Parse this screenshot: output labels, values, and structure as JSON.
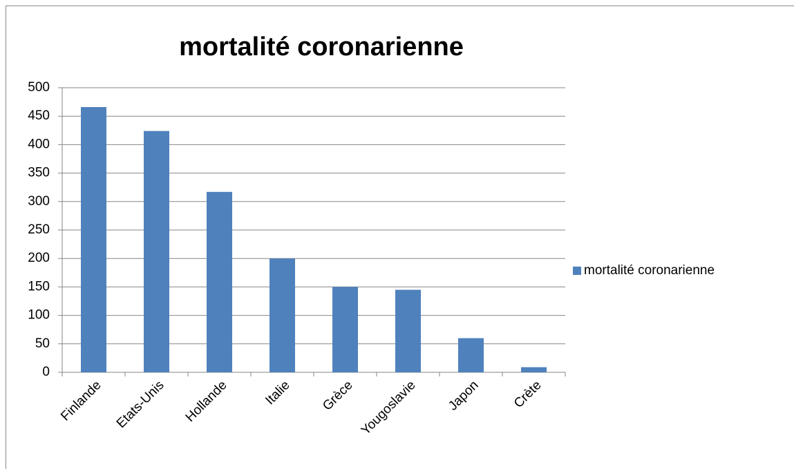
{
  "chart_data": {
    "type": "bar",
    "title": "mortalité coronarienne",
    "categories": [
      "Finlande",
      "Etats-Unis",
      "Hollande",
      "Italie",
      "Grèce",
      "Yougoslavie",
      "Japon",
      "Crète"
    ],
    "series": [
      {
        "name": "mortalité coronarienne",
        "color": "#4f81bd",
        "values": [
          466,
          424,
          317,
          200,
          150,
          145,
          60,
          9
        ]
      }
    ],
    "ylim": [
      0,
      500
    ],
    "yticks": [
      0,
      50,
      100,
      150,
      200,
      250,
      300,
      350,
      400,
      450,
      500
    ],
    "grid": true,
    "legend": "right"
  }
}
